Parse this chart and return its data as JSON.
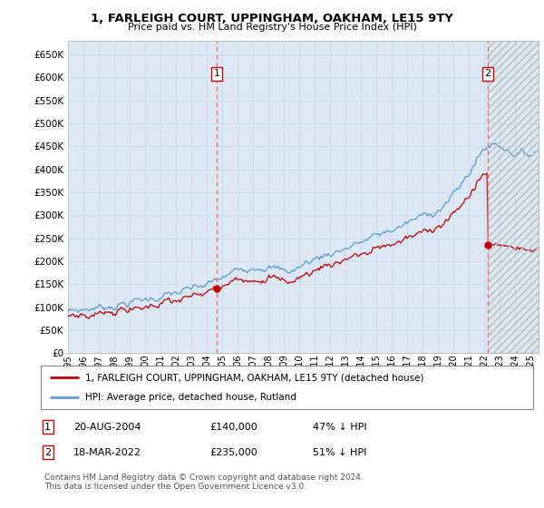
{
  "title": "1, FARLEIGH COURT, UPPINGHAM, OAKHAM, LE15 9TY",
  "subtitle": "Price paid vs. HM Land Registry's House Price Index (HPI)",
  "ytick_values": [
    0,
    50000,
    100000,
    150000,
    200000,
    250000,
    300000,
    350000,
    400000,
    450000,
    500000,
    550000,
    600000,
    650000
  ],
  "x_start_year": 1995,
  "x_end_year": 2025,
  "hpi_color": "#5b9bd5",
  "hpi_fill_color": "#dce9f5",
  "price_color": "#c00000",
  "vline_color": "#ff6666",
  "sale1_year": 2004.64,
  "sale1_price": 140000,
  "sale1_label": "1",
  "sale2_year": 2022.21,
  "sale2_price": 235000,
  "sale2_label": "2",
  "legend_line1": "1, FARLEIGH COURT, UPPINGHAM, OAKHAM, LE15 9TY (detached house)",
  "legend_line2": "HPI: Average price, detached house, Rutland",
  "table_row1": [
    "1",
    "20-AUG-2004",
    "£140,000",
    "47% ↓ HPI"
  ],
  "table_row2": [
    "2",
    "18-MAR-2022",
    "£235,000",
    "51% ↓ HPI"
  ],
  "footnote": "Contains HM Land Registry data © Crown copyright and database right 2024.\nThis data is licensed under the Open Government Licence v3.0.",
  "background_color": "#ffffff",
  "grid_color": "#c8d8e8"
}
